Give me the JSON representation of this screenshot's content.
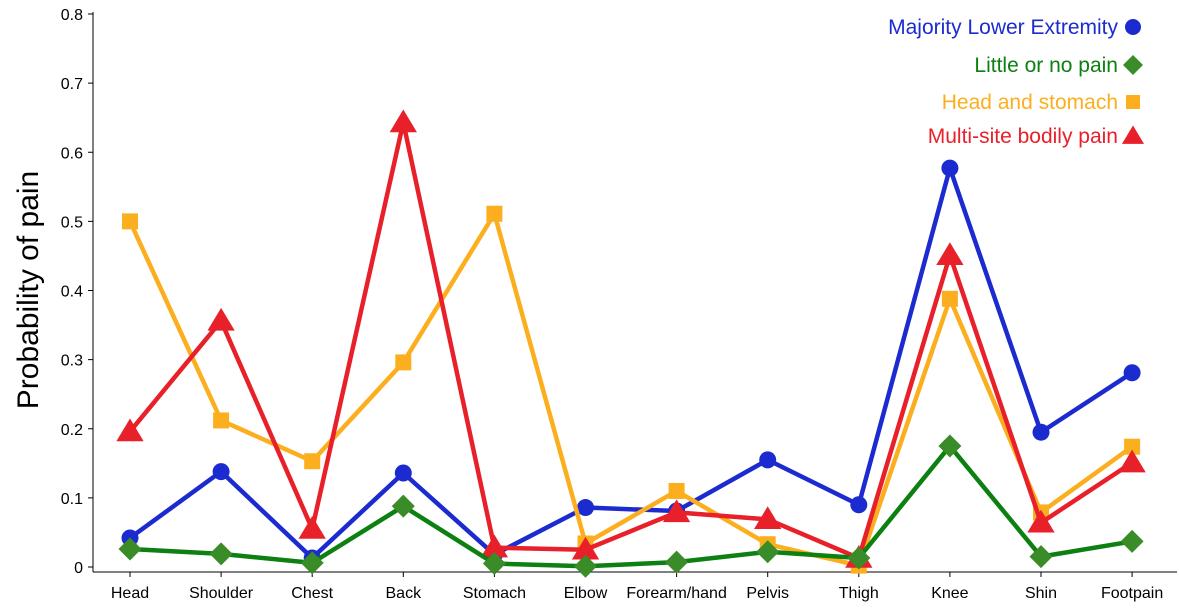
{
  "chart_data": {
    "type": "line",
    "title": "",
    "xlabel": "",
    "ylabel": "Probability of pain",
    "categories": [
      "Head",
      "Shoulder",
      "Chest",
      "Back",
      "Stomach",
      "Elbow",
      "Forearm/hand",
      "Pelvis",
      "Thigh",
      "Knee",
      "Shin",
      "Footpain"
    ],
    "ylim": [
      0,
      0.8
    ],
    "yticks": [
      0,
      0.1,
      0.2,
      0.3,
      0.4,
      0.5,
      0.6,
      0.7,
      0.8
    ],
    "ytick_labels": [
      "0",
      "0.1",
      "0.2",
      "0.3",
      "0.4",
      "0.5",
      "0.6",
      "0.7",
      "0.8"
    ],
    "grid": false,
    "legend_position": "top-right",
    "series": [
      {
        "name": "Majority Lower Extremity",
        "color": "#1c2bd0",
        "marker": "circle",
        "values": [
          0.042,
          0.138,
          0.013,
          0.136,
          0.018,
          0.086,
          0.081,
          0.155,
          0.09,
          0.577,
          0.195,
          0.281
        ]
      },
      {
        "name": "Little or no pain",
        "color": "#0d8012",
        "marker_color": "#3a8c28",
        "marker": "diamond",
        "values": [
          0.026,
          0.019,
          0.006,
          0.088,
          0.005,
          0.001,
          0.007,
          0.022,
          0.013,
          0.175,
          0.015,
          0.037
        ]
      },
      {
        "name": "Head and stomach",
        "color": "#fcaf1e",
        "marker": "square",
        "values": [
          0.5,
          0.212,
          0.153,
          0.296,
          0.511,
          0.034,
          0.11,
          0.033,
          0.002,
          0.388,
          0.079,
          0.174
        ]
      },
      {
        "name": "Multi-site bodily pain",
        "color": "#e8202a",
        "marker": "triangle",
        "values": [
          0.196,
          0.356,
          0.055,
          0.643,
          0.028,
          0.025,
          0.079,
          0.069,
          0.013,
          0.451,
          0.064,
          0.151
        ]
      }
    ]
  }
}
